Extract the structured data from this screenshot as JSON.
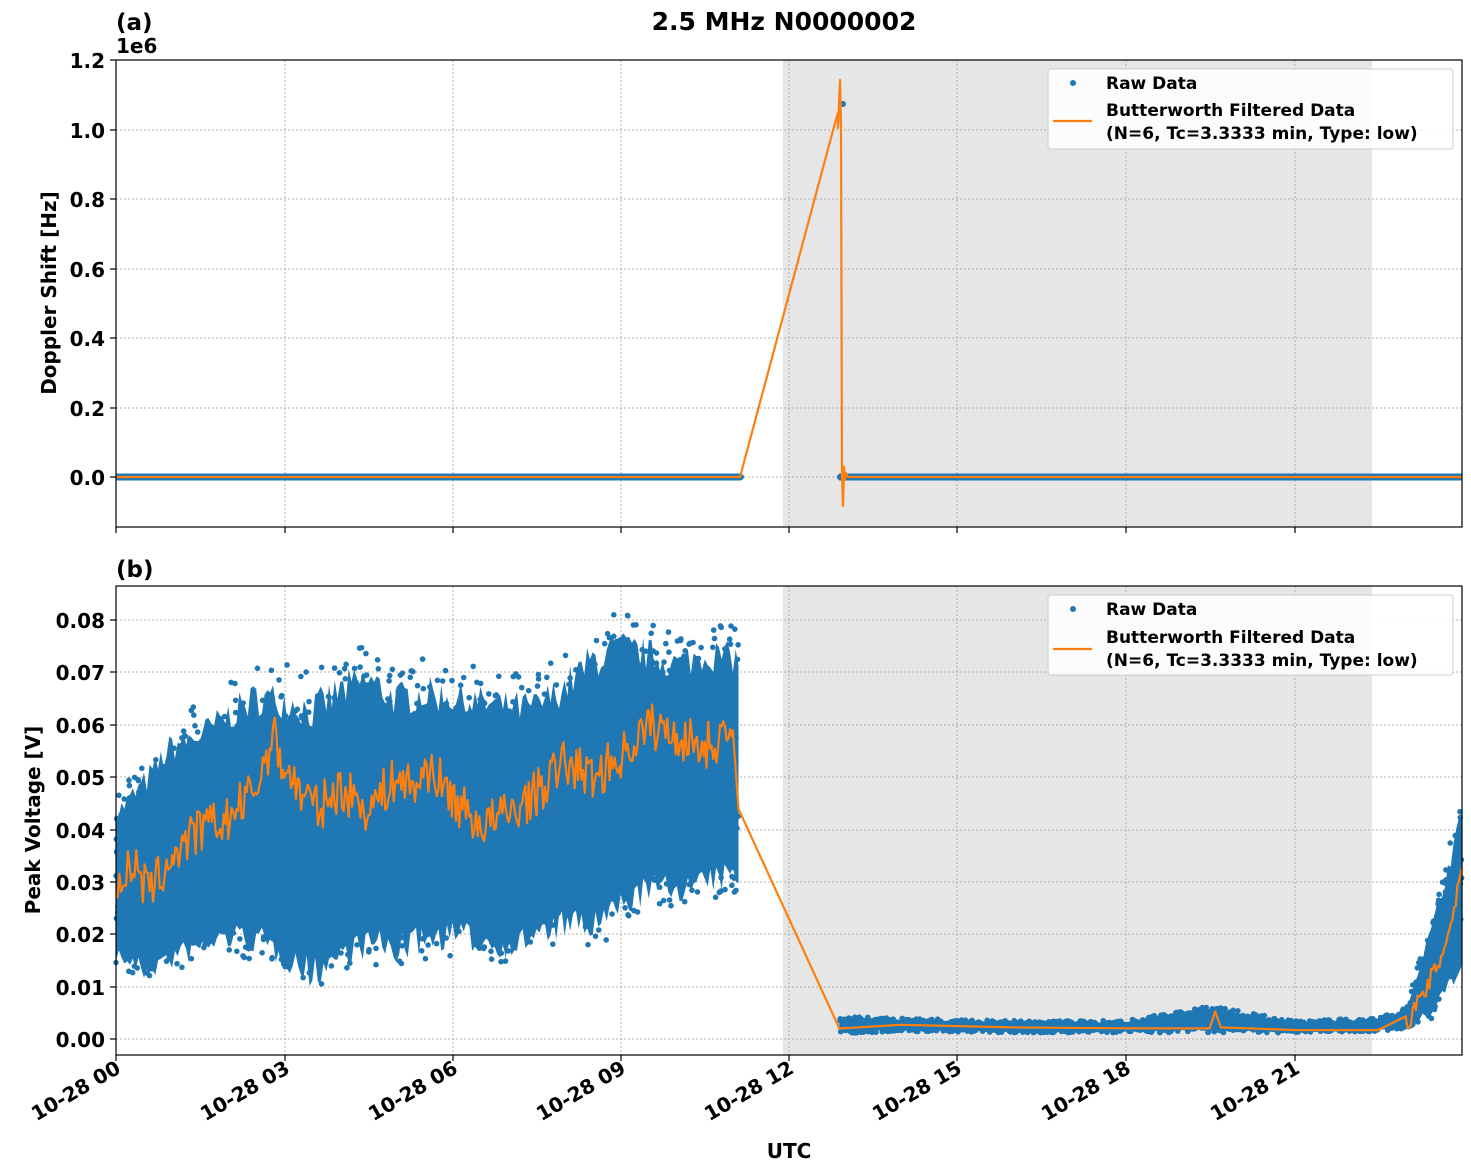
{
  "figure": {
    "title": "2.5 MHz N0000002",
    "xlabel": "UTC"
  },
  "panels": [
    {
      "label": "(a)",
      "ylabel": "Doppler Shift [Hz]",
      "offset_text": "1e6",
      "yticks": [
        "1.2",
        "1.0",
        "0.8",
        "0.6",
        "0.4",
        "0.2",
        "0.0"
      ],
      "legend": {
        "raw": "Raw Data",
        "filtered_line1": "Butterworth Filtered Data",
        "filtered_line2": "(N=6, Tc=3.3333 min, Type: low)"
      }
    },
    {
      "label": "(b)",
      "ylabel": "Peak Voltage [V]",
      "yticks": [
        "0.08",
        "0.07",
        "0.06",
        "0.05",
        "0.04",
        "0.03",
        "0.02",
        "0.01",
        "0.00"
      ],
      "legend": {
        "raw": "Raw Data",
        "filtered_line1": "Butterworth Filtered Data",
        "filtered_line2": "(N=6, Tc=3.3333 min, Type: low)"
      }
    }
  ],
  "xticks": [
    "10-28 00",
    "10-28 03",
    "10-28 06",
    "10-28 09",
    "10-28 12",
    "10-28 15",
    "10-28 18",
    "10-28 21"
  ],
  "colors": {
    "raw": "#1f77b4",
    "filtered": "#ff7f0e",
    "shade": "#e6e6e6",
    "grid": "#b0b0b0"
  },
  "chart_data": [
    {
      "type": "scatter",
      "title": "2.5 MHz N0000002",
      "panel": "(a)",
      "xlabel": "",
      "ylabel": "Doppler Shift [Hz]",
      "y_scale_offset": "1e6",
      "xlim_hours": [
        0,
        24
      ],
      "ylim": [
        -145000,
        1200000
      ],
      "grid": true,
      "legend_position": "upper right",
      "shaded_region_hours": [
        11.9,
        22.4
      ],
      "series": [
        {
          "name": "Raw Data",
          "style": "points",
          "segments": [
            {
              "x_hours": [
                0,
                11.1
              ],
              "y": 0
            },
            {
              "x_hours": [
                12.9,
                24
              ],
              "y": 0
            }
          ],
          "outliers": [
            {
              "x_hours": 13.0,
              "y": 1070000
            }
          ]
        },
        {
          "name": "Butterworth Filtered Data (N=6, Tc=3.3333 min, Type: low)",
          "style": "line",
          "x_hours": [
            0,
            11.1,
            12.8,
            12.82,
            12.87,
            12.9,
            12.93,
            12.96,
            13.0,
            13.05,
            24
          ],
          "y": [
            0,
            0,
            1040000,
            1010000,
            1140000,
            0,
            -85000,
            30000,
            -10000,
            0,
            0
          ]
        }
      ]
    },
    {
      "type": "scatter",
      "panel": "(b)",
      "xlabel": "UTC",
      "ylabel": "Peak Voltage [V]",
      "xlim_hours": [
        0,
        24
      ],
      "ylim": [
        -0.003,
        0.0865
      ],
      "grid": true,
      "legend_position": "upper right",
      "shaded_region_hours": [
        11.9,
        22.4
      ],
      "x_tick_labels": [
        "10-28 00",
        "10-28 03",
        "10-28 06",
        "10-28 09",
        "10-28 12",
        "10-28 15",
        "10-28 18",
        "10-28 21"
      ],
      "series": [
        {
          "name": "Raw Data",
          "style": "points",
          "envelope_hours": [
            0,
            0.5,
            1,
            1.5,
            2,
            2.5,
            3,
            3.5,
            4,
            4.5,
            5,
            5.5,
            6,
            6.5,
            7,
            7.5,
            8,
            8.5,
            9,
            9.5,
            10,
            10.5,
            11.1,
            12.9,
            14,
            16,
            18,
            19.5,
            21,
            22.5,
            23,
            23.5,
            24
          ],
          "upper": [
            0.047,
            0.054,
            0.062,
            0.064,
            0.068,
            0.072,
            0.072,
            0.07,
            0.074,
            0.076,
            0.072,
            0.073,
            0.072,
            0.071,
            0.07,
            0.07,
            0.074,
            0.08,
            0.082,
            0.08,
            0.078,
            0.08,
            0.079,
            0.0045,
            0.004,
            0.0035,
            0.0035,
            0.0065,
            0.0035,
            0.004,
            0.006,
            0.025,
            0.047
          ],
          "lower": [
            0.014,
            0.01,
            0.012,
            0.014,
            0.016,
            0.015,
            0.012,
            0.008,
            0.012,
            0.014,
            0.013,
            0.015,
            0.016,
            0.015,
            0.014,
            0.016,
            0.018,
            0.017,
            0.021,
            0.025,
            0.025,
            0.026,
            0.028,
            0.001,
            0.0015,
            0.0012,
            0.0012,
            0.0012,
            0.0012,
            0.0015,
            0.002,
            0.004,
            0.012
          ]
        },
        {
          "name": "Butterworth Filtered Data (N=6, Tc=3.3333 min, Type: low)",
          "style": "line",
          "x_hours": [
            0,
            0.3,
            0.6,
            1,
            1.5,
            2,
            2.5,
            2.8,
            3,
            3.3,
            3.6,
            4,
            4.5,
            5,
            5.3,
            5.6,
            6,
            6.5,
            7,
            7.5,
            8,
            8.5,
            9,
            9.5,
            10,
            10.5,
            11.0,
            11.1,
            12.9,
            14,
            16,
            18,
            19.5,
            19.6,
            19.7,
            21,
            22.5,
            23,
            23.3,
            23.6,
            23.8,
            24
          ],
          "y": [
            0.03,
            0.033,
            0.028,
            0.035,
            0.04,
            0.042,
            0.048,
            0.058,
            0.052,
            0.047,
            0.044,
            0.048,
            0.044,
            0.05,
            0.048,
            0.052,
            0.046,
            0.041,
            0.043,
            0.047,
            0.053,
            0.05,
            0.054,
            0.06,
            0.058,
            0.056,
            0.059,
            0.044,
            0.002,
            0.0025,
            0.002,
            0.002,
            0.002,
            0.005,
            0.002,
            0.002,
            0.002,
            0.003,
            0.008,
            0.015,
            0.022,
            0.033
          ]
        }
      ]
    }
  ]
}
